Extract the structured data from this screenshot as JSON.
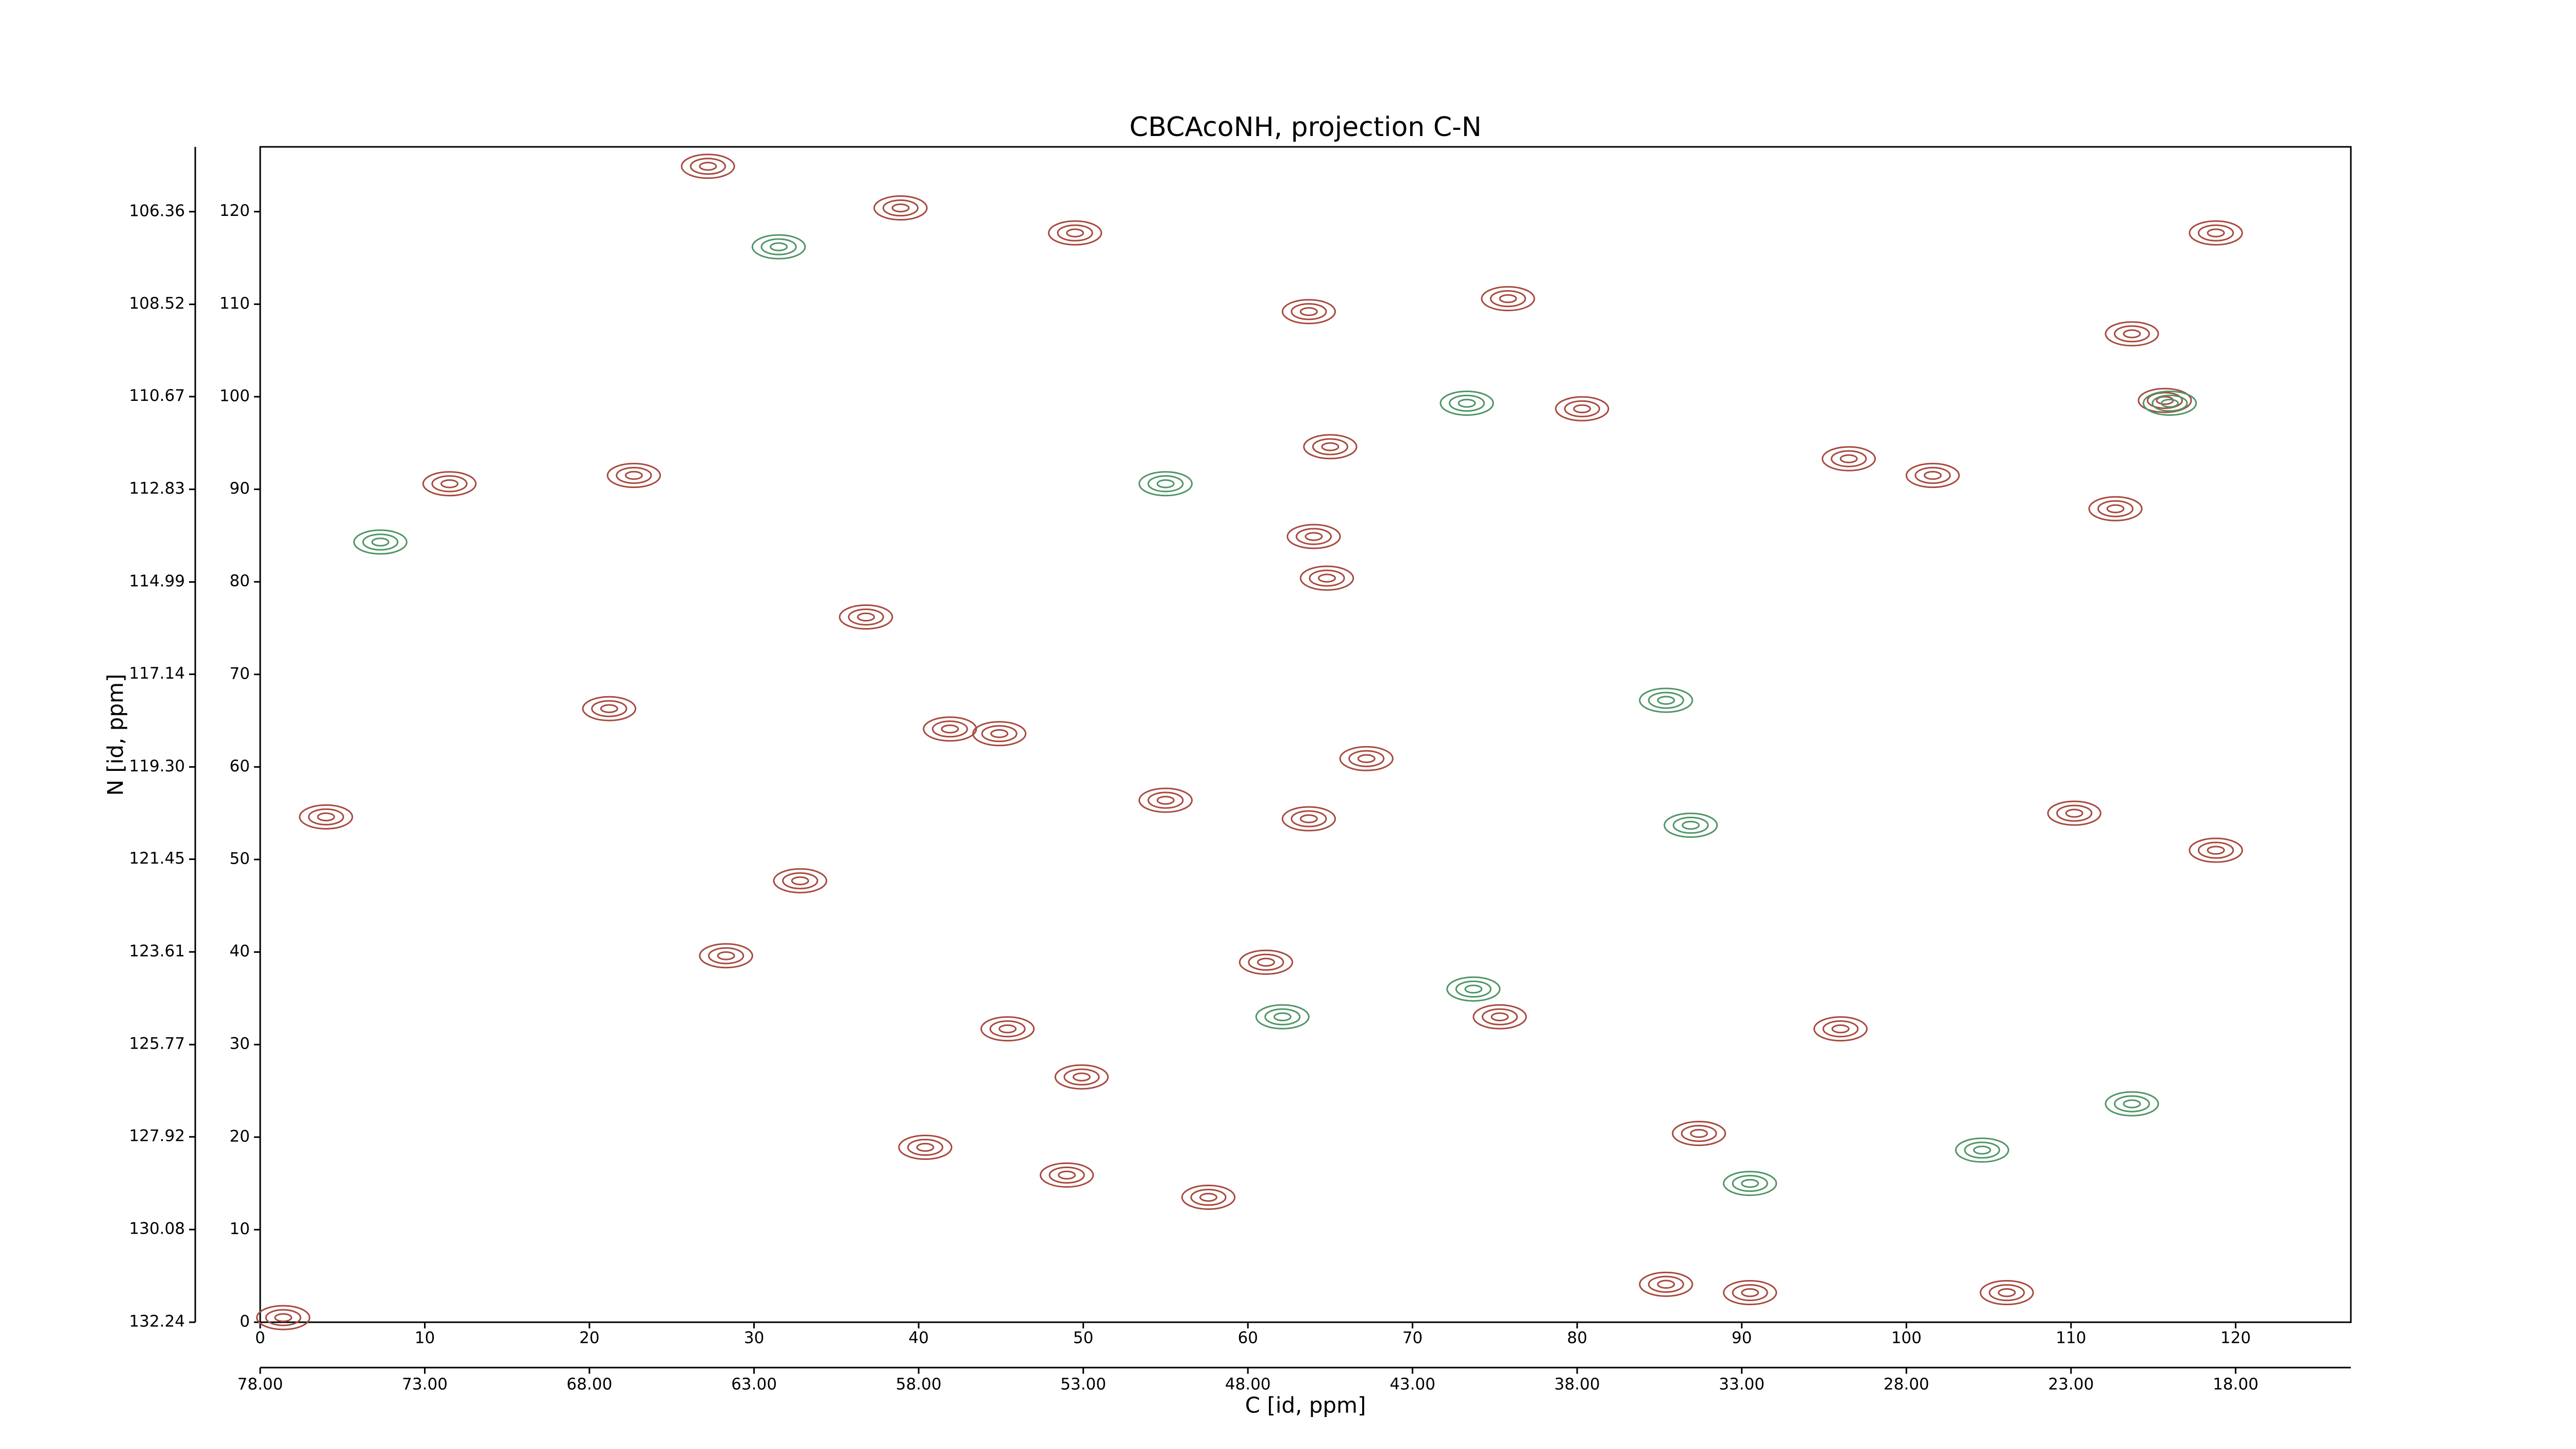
{
  "chart_data": {
    "type": "contour",
    "title": "CBCAcoNH, projection C-N",
    "xlabel": "C [id, ppm]",
    "ylabel": "N [id, ppm]",
    "xlim": [
      0,
      127
    ],
    "ylim": [
      0,
      127
    ],
    "xticks": [
      0,
      10,
      20,
      30,
      40,
      50,
      60,
      70,
      80,
      90,
      100,
      110,
      120
    ],
    "yticks": [
      0,
      10,
      20,
      30,
      40,
      50,
      60,
      70,
      80,
      90,
      100,
      110,
      120
    ],
    "x2lim": [
      78,
      14.5
    ],
    "x2ticks": [
      {
        "value": 78,
        "label": "78.00"
      },
      {
        "value": 73,
        "label": "73.00"
      },
      {
        "value": 68,
        "label": "68.00"
      },
      {
        "value": 63,
        "label": "63.00"
      },
      {
        "value": 58,
        "label": "58.00"
      },
      {
        "value": 53,
        "label": "53.00"
      },
      {
        "value": 48,
        "label": "48.00"
      },
      {
        "value": 43,
        "label": "43.00"
      },
      {
        "value": 38,
        "label": "38.00"
      },
      {
        "value": 33,
        "label": "33.00"
      },
      {
        "value": 28,
        "label": "28.00"
      },
      {
        "value": 23,
        "label": "23.00"
      },
      {
        "value": 18,
        "label": "18.00"
      }
    ],
    "y2lim": [
      132.24,
      104.85
    ],
    "y2ticks": [
      132.24,
      130.08,
      127.92,
      125.77,
      123.61,
      121.45,
      {
        "value": 119.3,
        "label": "119.30"
      },
      117.14,
      114.99,
      112.83,
      110.67,
      108.52,
      106.36
    ],
    "series": [
      {
        "color": "#a8493e",
        "x": [
          63.7,
          65,
          64,
          64.8,
          63.7,
          49.5,
          49.9,
          45.4,
          96,
          110.2,
          118.8,
          28.3,
          21.2,
          32.8,
          41.9,
          75.8,
          118.8,
          115.7,
          11.5,
          22.7,
          40.4,
          61.1,
          85.4,
          90.5,
          1.4,
          106.1,
          57.6,
          67.2,
          87.4,
          75.3,
          49,
          27.2,
          38.9,
          113.7,
          4,
          80.3,
          96.5,
          101.6,
          112.7,
          55,
          36.8,
          44.9
        ],
        "values": [
          109.2,
          94.6,
          84.9,
          80.4,
          54.4,
          117.7,
          26.5,
          31.7,
          31.7,
          55,
          51,
          39.6,
          66.3,
          47.7,
          64.1,
          110.6,
          117.7,
          99.6,
          90.6,
          91.5,
          18.9,
          38.9,
          4.1,
          3.2,
          0.5,
          3.2,
          13.5,
          60.9,
          20.4,
          33,
          15.9,
          124.9,
          120.4,
          106.8,
          54.6,
          98.7,
          93.3,
          91.5,
          87.9,
          56.4,
          76.2,
          63.6
        ]
      },
      {
        "color": "#4f9566",
        "x": [
          31.5,
          116,
          55,
          73.3,
          86.9,
          90.5,
          73.7,
          104.6,
          113.7,
          7.3,
          62.1,
          85.4
        ],
        "values": [
          116.2,
          99.3,
          90.6,
          99.3,
          53.7,
          15,
          36,
          18.6,
          23.6,
          84.3,
          33,
          67.2
        ]
      }
    ]
  }
}
